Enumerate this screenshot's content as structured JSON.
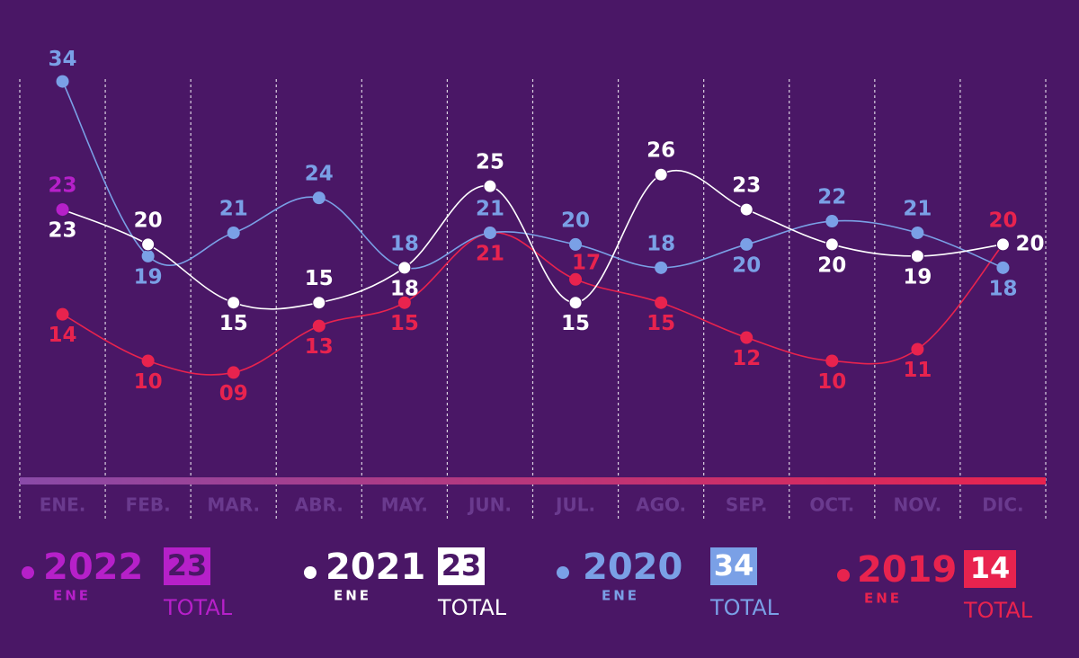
{
  "chart_data": {
    "type": "line",
    "categories": [
      "ENE.",
      "FEB.",
      "MAR.",
      "ABR.",
      "MAY.",
      "JUN.",
      "JUL.",
      "AGO.",
      "SEP.",
      "OCT.",
      "NOV.",
      "DIC."
    ],
    "ylim": [
      0,
      34.2
    ],
    "legend_month": "ENE",
    "total_label": "TOTAL",
    "series": [
      {
        "name": "2022",
        "color": "#b620c9",
        "values": [
          23,
          null,
          null,
          null,
          null,
          null,
          null,
          null,
          null,
          null,
          null,
          null
        ]
      },
      {
        "name": "2021",
        "color": "#ffffff",
        "values": [
          23,
          20,
          15,
          15,
          18,
          25,
          15,
          26,
          23,
          20,
          19,
          20
        ]
      },
      {
        "name": "2020",
        "color": "#7aa0e6",
        "values": [
          34,
          19,
          21,
          24,
          18,
          21,
          20,
          18,
          20,
          22,
          21,
          18
        ]
      },
      {
        "name": "2019",
        "color": "#e8234e",
        "values": [
          14,
          10,
          9,
          13,
          15,
          21,
          17,
          15,
          12,
          10,
          11,
          20
        ],
        "value_labels": [
          "14",
          "10",
          "09",
          "13",
          "15",
          "21",
          "17",
          "15",
          "12",
          "10",
          "11",
          "20"
        ]
      }
    ]
  }
}
